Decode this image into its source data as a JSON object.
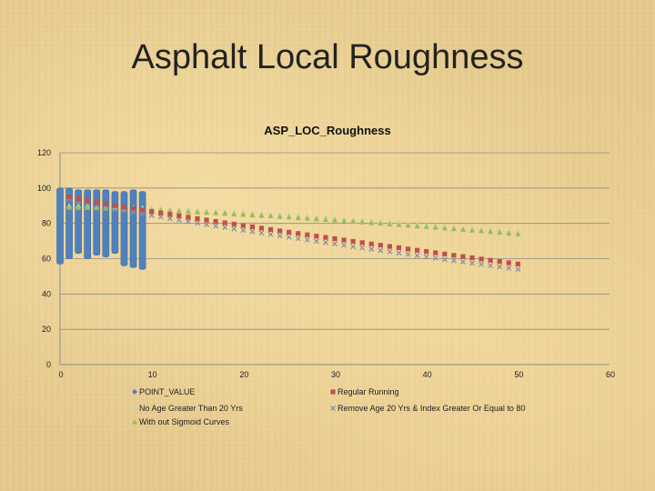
{
  "slide": {
    "title": "Asphalt Local Roughness"
  },
  "colors": {
    "point_value": "#4f81bd",
    "regular_running": "#c0504d",
    "no_age_gt_20": "#c3d69b",
    "remove_age_20": "#8a8fa8",
    "without_sigmoid": "#9bbb59",
    "gridline": "#8c8c8c"
  },
  "chart_data": {
    "type": "scatter",
    "title": "ASP_LOC_Roughness",
    "xlabel": "",
    "ylabel": "",
    "xlim": [
      0,
      60
    ],
    "ylim": [
      0,
      120
    ],
    "x_ticks": [
      "0",
      "10",
      "20",
      "30",
      "40",
      "50",
      "60"
    ],
    "y_ticks": [
      "0",
      "20",
      "40",
      "60",
      "80",
      "100",
      "120"
    ],
    "grid": "horizontal",
    "legend_position": "bottom",
    "legend_order": [
      "POINT_VALUE",
      "Regular Running",
      "No Age Greater Than 20 Yrs",
      "Remove Age 20 Yrs & Index Greater Or Equal to 80",
      "With out Sigmoid Curves"
    ],
    "series": [
      {
        "name": "POINT_VALUE",
        "marker": "diamond",
        "ranges": [
          {
            "x": 0,
            "low": 57,
            "high": 100
          },
          {
            "x": 1,
            "low": 60,
            "high": 100
          },
          {
            "x": 2,
            "low": 63,
            "high": 99
          },
          {
            "x": 3,
            "low": 60,
            "high": 99
          },
          {
            "x": 4,
            "low": 62,
            "high": 99
          },
          {
            "x": 5,
            "low": 61,
            "high": 99
          },
          {
            "x": 6,
            "low": 63,
            "high": 98
          },
          {
            "x": 7,
            "low": 56,
            "high": 98
          },
          {
            "x": 8,
            "low": 55,
            "high": 99
          },
          {
            "x": 9,
            "low": 54,
            "high": 98
          }
        ]
      },
      {
        "name": "Regular Running",
        "marker": "square",
        "x_start": 1,
        "x_end": 50,
        "y_start": 95,
        "y_end": 57,
        "curve": 0.9
      },
      {
        "name": "No Age Greater Than 20 Yrs",
        "marker": "triangle",
        "x_start": 1,
        "x_end": 50,
        "y_start": 90,
        "y_end": 75,
        "curve": 1.4
      },
      {
        "name": "Remove Age 20 Yrs & Index Greater Or Equal to 80",
        "marker": "x",
        "x_start": 1,
        "x_end": 50,
        "y_start": 94,
        "y_end": 54,
        "curve": 0.85
      },
      {
        "name": "With out Sigmoid Curves",
        "marker": "triangle",
        "x_start": 1,
        "x_end": 50,
        "y_start": 89,
        "y_end": 74,
        "curve": 1.4
      }
    ]
  }
}
